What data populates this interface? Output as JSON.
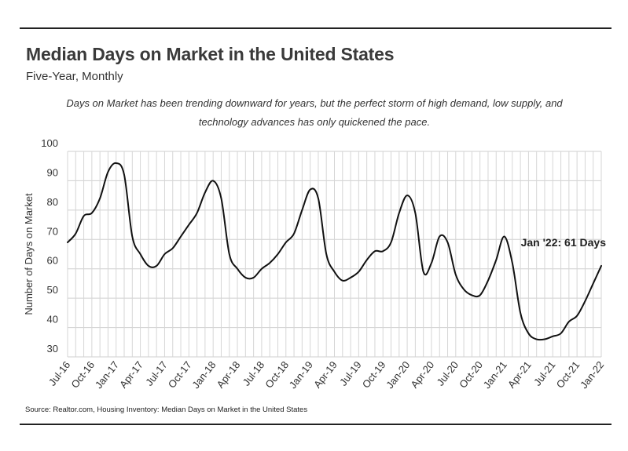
{
  "header": {
    "title": "Median Days on Market in the United States",
    "subtitle": "Five-Year, Monthly",
    "description_line1": "Days on Market has been trending downward for years, but the perfect storm of high demand, low supply, and",
    "description_line2": "technology advances has only quickened the pace."
  },
  "footer": {
    "source": "Source:  Realtor.com, Housing Inventory: Median Days on Market in the United States"
  },
  "chart_data": {
    "type": "line",
    "title": "Median Days on Market in the United States",
    "subtitle": "Five-Year, Monthly",
    "xlabel": "",
    "ylabel": "Number of Days on Market",
    "ylim": [
      30,
      100
    ],
    "yticks": [
      30,
      40,
      50,
      60,
      70,
      80,
      90,
      100
    ],
    "grid": true,
    "x": [
      "Jul-16",
      "Aug-16",
      "Sep-16",
      "Oct-16",
      "Nov-16",
      "Dec-16",
      "Jan-17",
      "Feb-17",
      "Mar-17",
      "Apr-17",
      "May-17",
      "Jun-17",
      "Jul-17",
      "Aug-17",
      "Sep-17",
      "Oct-17",
      "Nov-17",
      "Dec-17",
      "Jan-18",
      "Feb-18",
      "Mar-18",
      "Apr-18",
      "May-18",
      "Jun-18",
      "Jul-18",
      "Aug-18",
      "Sep-18",
      "Oct-18",
      "Nov-18",
      "Dec-18",
      "Jan-19",
      "Feb-19",
      "Mar-19",
      "Apr-19",
      "May-19",
      "Jun-19",
      "Jul-19",
      "Aug-19",
      "Sep-19",
      "Oct-19",
      "Nov-19",
      "Dec-19",
      "Jan-20",
      "Feb-20",
      "Mar-20",
      "Apr-20",
      "May-20",
      "Jun-20",
      "Jul-20",
      "Aug-20",
      "Sep-20",
      "Oct-20",
      "Nov-20",
      "Dec-20",
      "Jan-21",
      "Feb-21",
      "Mar-21",
      "Apr-21",
      "May-21",
      "Jun-21",
      "Jul-21",
      "Aug-21",
      "Sep-21",
      "Oct-21",
      "Nov-21",
      "Dec-21",
      "Jan-22"
    ],
    "x_tick_labels": [
      "Jul-16",
      "Oct-16",
      "Jan-17",
      "Apr-17",
      "Jul-17",
      "Oct-17",
      "Jan-18",
      "Apr-18",
      "Jul-18",
      "Oct-18",
      "Jan-19",
      "Apr-19",
      "Jul-19",
      "Oct-19",
      "Jan-20",
      "Apr-20",
      "Jul-20",
      "Oct-20",
      "Jan-21",
      "Apr-21",
      "Jul-21",
      "Oct-21",
      "Jan-22"
    ],
    "series": [
      {
        "name": "Median Days on Market",
        "color": "#111111",
        "values": [
          69,
          72,
          78,
          79,
          84,
          93,
          96,
          92,
          71,
          65,
          61,
          61,
          65,
          67,
          71,
          75,
          79,
          86,
          90,
          84,
          65,
          60,
          57,
          57,
          60,
          62,
          65,
          69,
          72,
          80,
          87,
          84,
          65,
          59,
          56,
          57,
          59,
          63,
          66,
          66,
          69,
          79,
          85,
          79,
          59,
          62,
          71,
          69,
          58,
          53,
          51,
          51,
          56,
          63,
          71,
          62,
          45,
          38,
          36,
          36,
          37,
          38,
          42,
          44,
          49,
          55,
          61
        ]
      }
    ],
    "annotations": [
      {
        "text": "Jan '22: 61 Days",
        "x": "Jan-22",
        "y": 61
      }
    ]
  }
}
